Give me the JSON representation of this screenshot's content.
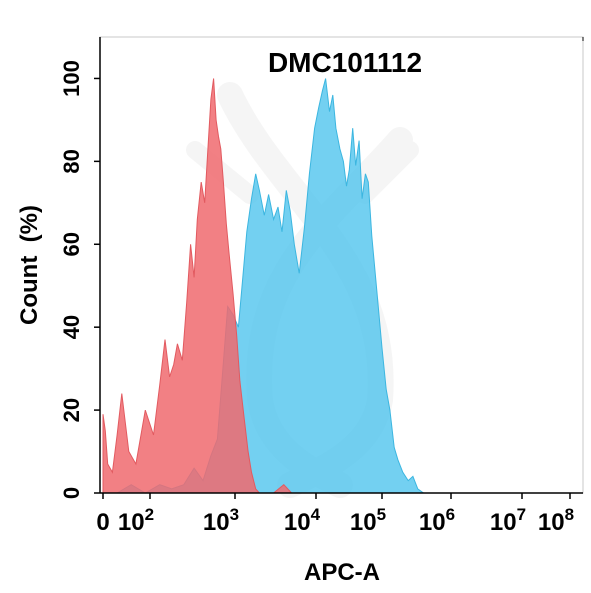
{
  "chart_data": {
    "type": "area",
    "title": "DMC101112",
    "xlabel": "APC-A",
    "ylabel": "Count  (%)",
    "x_scale": "biexponential (log above 10^2)",
    "xlim": [
      0,
      100000000
    ],
    "ylim": [
      0,
      110
    ],
    "yticks": [
      0,
      20,
      40,
      60,
      80,
      100
    ],
    "ytick_labels": [
      "0",
      "20",
      "40",
      "60",
      "80",
      "100"
    ],
    "xticks": [
      0,
      100,
      1000,
      10000,
      100000,
      1000000,
      10000000,
      100000000
    ],
    "xtick_labels": [
      {
        "base": "0",
        "exp": ""
      },
      {
        "base": "10",
        "exp": "2"
      },
      {
        "base": "10",
        "exp": "3"
      },
      {
        "base": "10",
        "exp": "4"
      },
      {
        "base": "10",
        "exp": "5"
      },
      {
        "base": "10",
        "exp": "6"
      },
      {
        "base": "10",
        "exp": "7"
      },
      {
        "base": "10",
        "exp": "8"
      }
    ],
    "grid": false,
    "legend": "none",
    "series": [
      {
        "color": "#f06a6e",
        "points": [
          [
            0,
            19
          ],
          [
            5,
            15
          ],
          [
            10,
            7
          ],
          [
            20,
            5
          ],
          [
            30,
            14
          ],
          [
            40,
            24
          ],
          [
            55,
            10
          ],
          [
            70,
            7
          ],
          [
            90,
            20
          ],
          [
            110,
            14
          ],
          [
            130,
            26
          ],
          [
            150,
            37
          ],
          [
            170,
            28
          ],
          [
            190,
            31
          ],
          [
            210,
            36
          ],
          [
            240,
            32
          ],
          [
            270,
            46
          ],
          [
            300,
            60
          ],
          [
            330,
            52
          ],
          [
            360,
            66
          ],
          [
            400,
            75
          ],
          [
            440,
            70
          ],
          [
            480,
            83
          ],
          [
            520,
            95
          ],
          [
            560,
            100
          ],
          [
            600,
            90
          ],
          [
            640,
            86
          ],
          [
            680,
            83
          ],
          [
            730,
            75
          ],
          [
            790,
            65
          ],
          [
            850,
            58
          ],
          [
            950,
            48
          ],
          [
            1050,
            38
          ],
          [
            1150,
            27
          ],
          [
            1300,
            18
          ],
          [
            1450,
            10
          ],
          [
            1600,
            5
          ],
          [
            1800,
            1
          ],
          [
            2000,
            0
          ],
          [
            3000,
            0
          ],
          [
            4000,
            2
          ],
          [
            5000,
            0
          ]
        ]
      },
      {
        "color": "#54c6ee",
        "points": [
          [
            0,
            0
          ],
          [
            30,
            0
          ],
          [
            60,
            2
          ],
          [
            90,
            0
          ],
          [
            130,
            2
          ],
          [
            180,
            1
          ],
          [
            250,
            2
          ],
          [
            330,
            6
          ],
          [
            420,
            3
          ],
          [
            520,
            9
          ],
          [
            620,
            13
          ],
          [
            720,
            30
          ],
          [
            820,
            45
          ],
          [
            950,
            43
          ],
          [
            1100,
            40
          ],
          [
            1250,
            52
          ],
          [
            1400,
            63
          ],
          [
            1600,
            71
          ],
          [
            1800,
            77
          ],
          [
            2000,
            73
          ],
          [
            2300,
            67
          ],
          [
            2600,
            72
          ],
          [
            3000,
            66
          ],
          [
            3400,
            69
          ],
          [
            3800,
            63
          ],
          [
            4300,
            73
          ],
          [
            4800,
            68
          ],
          [
            5400,
            60
          ],
          [
            6200,
            53
          ],
          [
            7200,
            64
          ],
          [
            8300,
            77
          ],
          [
            9600,
            88
          ],
          [
            11000,
            93
          ],
          [
            12500,
            97
          ],
          [
            14000,
            100
          ],
          [
            16000,
            92
          ],
          [
            18000,
            96
          ],
          [
            20000,
            88
          ],
          [
            23000,
            83
          ],
          [
            26000,
            80
          ],
          [
            29000,
            74
          ],
          [
            32000,
            78
          ],
          [
            36000,
            88
          ],
          [
            40000,
            79
          ],
          [
            45000,
            85
          ],
          [
            50000,
            71
          ],
          [
            56000,
            77
          ],
          [
            62000,
            75
          ],
          [
            70000,
            62
          ],
          [
            80000,
            52
          ],
          [
            90000,
            43
          ],
          [
            100000,
            35
          ],
          [
            115000,
            25
          ],
          [
            130000,
            20
          ],
          [
            150000,
            11
          ],
          [
            170000,
            8
          ],
          [
            200000,
            5
          ],
          [
            240000,
            3
          ],
          [
            280000,
            4
          ],
          [
            330000,
            1
          ],
          [
            400000,
            0
          ]
        ]
      }
    ]
  }
}
